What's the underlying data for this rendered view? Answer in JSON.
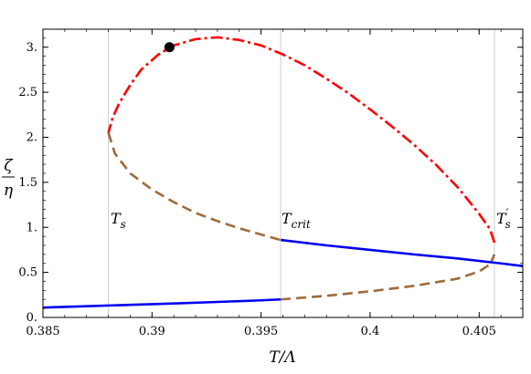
{
  "chart_data": {
    "type": "line",
    "title": "",
    "xlabel": "T/Λ",
    "ylabel": "ζ/η",
    "xlim": [
      0.385,
      0.407
    ],
    "ylim": [
      0,
      3.2
    ],
    "x_ticks": [
      0.385,
      0.39,
      0.395,
      0.4,
      0.405
    ],
    "x_tick_labels": [
      "0.385",
      "0.39",
      "0.395",
      "0.4",
      "0.405"
    ],
    "y_ticks": [
      0,
      0.5,
      1,
      1.5,
      2,
      2.5,
      3
    ],
    "y_tick_labels": [
      "0.",
      "0.5",
      "1.",
      "1.5",
      "2.",
      "2.5",
      "3."
    ],
    "vertical_lines": [
      {
        "x": 0.388,
        "label": "T_s"
      },
      {
        "x": 0.3959,
        "label": "T_crit"
      },
      {
        "x": 0.4057,
        "label": "T'_s"
      }
    ],
    "annotation_labels": {
      "T_s": {
        "main": "T",
        "sub": "s",
        "sup": ""
      },
      "T_crit": {
        "main": "T",
        "sub": "crit",
        "sup": ""
      },
      "T'_s": {
        "main": "T",
        "sub": "s",
        "sup": "′"
      }
    },
    "series": [
      {
        "style": "solid",
        "color": "#0000ee",
        "x": [
          0.385,
          0.387,
          0.389,
          0.391,
          0.393,
          0.395,
          0.3959
        ],
        "y": [
          0.11,
          0.125,
          0.14,
          0.155,
          0.172,
          0.19,
          0.2
        ]
      },
      {
        "style": "dashed",
        "color": "#a06a3a",
        "x": [
          0.3959,
          0.398,
          0.4,
          0.402,
          0.404,
          0.405,
          0.4055,
          0.4057
        ],
        "y": [
          0.2,
          0.24,
          0.29,
          0.35,
          0.43,
          0.51,
          0.59,
          0.7
        ]
      },
      {
        "style": "solid",
        "color": "#0000ee",
        "x": [
          0.3959,
          0.398,
          0.4,
          0.402,
          0.404,
          0.406,
          0.407
        ],
        "y": [
          0.86,
          0.8,
          0.75,
          0.7,
          0.655,
          0.6,
          0.57
        ]
      },
      {
        "style": "dashed",
        "color": "#a06a3a",
        "x": [
          0.388,
          0.3883,
          0.389,
          0.39,
          0.391,
          0.392,
          0.393,
          0.394,
          0.395,
          0.3959
        ],
        "y": [
          2.05,
          1.82,
          1.6,
          1.42,
          1.28,
          1.16,
          1.07,
          0.99,
          0.92,
          0.86
        ]
      },
      {
        "style": "dashdot",
        "color": "#ff0000",
        "x": [
          0.4057,
          0.4055,
          0.405,
          0.404,
          0.403,
          0.402,
          0.401,
          0.4,
          0.399,
          0.398,
          0.397,
          0.396,
          0.395,
          0.394,
          0.393,
          0.392,
          0.391,
          0.3903,
          0.3895,
          0.389,
          0.3885,
          0.3882,
          0.388
        ],
        "y": [
          0.83,
          0.98,
          1.15,
          1.45,
          1.7,
          1.92,
          2.12,
          2.31,
          2.49,
          2.65,
          2.8,
          2.92,
          3.02,
          3.08,
          3.11,
          3.09,
          3.02,
          2.92,
          2.75,
          2.58,
          2.38,
          2.22,
          2.05
        ]
      }
    ],
    "markers": [
      {
        "x": 0.3908,
        "y": 3.0,
        "color": "#000000"
      }
    ],
    "grid": false
  }
}
